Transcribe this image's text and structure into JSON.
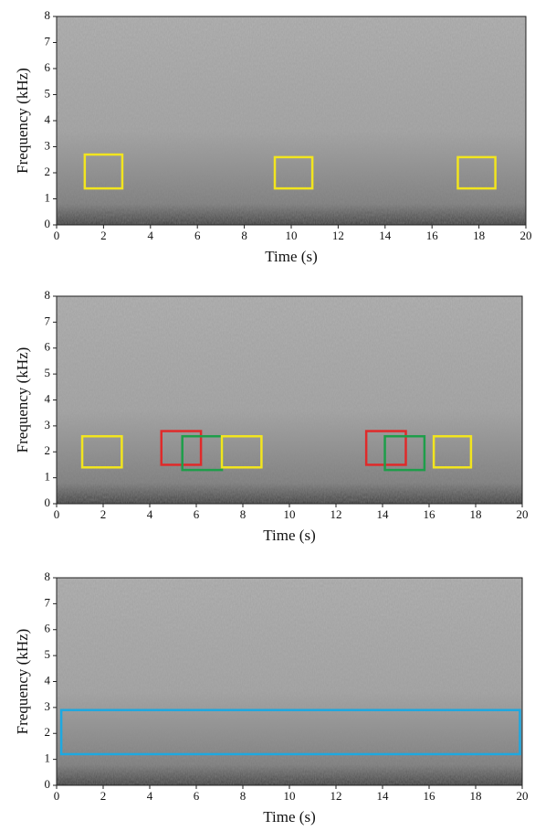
{
  "chart_data": [
    {
      "type": "spectrogram",
      "xlabel": "Time (s)",
      "ylabel": "Frequency (kHz)",
      "xlim": [
        0,
        20
      ],
      "ylim": [
        0,
        8
      ],
      "xticks": [
        0,
        2,
        4,
        6,
        8,
        10,
        12,
        14,
        16,
        18,
        20
      ],
      "yticks": [
        0,
        1,
        2,
        3,
        4,
        5,
        6,
        7,
        8
      ],
      "boxes": [
        {
          "color": "#f2e51e",
          "x": [
            1.2,
            2.8
          ],
          "y": [
            1.4,
            2.7
          ]
        },
        {
          "color": "#f2e51e",
          "x": [
            9.3,
            10.9
          ],
          "y": [
            1.4,
            2.6
          ]
        },
        {
          "color": "#f2e51e",
          "x": [
            17.1,
            18.7
          ],
          "y": [
            1.4,
            2.6
          ]
        }
      ]
    },
    {
      "type": "spectrogram",
      "xlabel": "Time (s)",
      "ylabel": "Frequency (kHz)",
      "xlim": [
        0,
        20
      ],
      "ylim": [
        0,
        8
      ],
      "xticks": [
        0,
        2,
        4,
        6,
        8,
        10,
        12,
        14,
        16,
        18,
        20
      ],
      "yticks": [
        0,
        1,
        2,
        3,
        4,
        5,
        6,
        7,
        8
      ],
      "boxes": [
        {
          "color": "#f2e51e",
          "x": [
            1.1,
            2.8
          ],
          "y": [
            1.4,
            2.6
          ]
        },
        {
          "color": "#e02a2a",
          "x": [
            4.5,
            6.2
          ],
          "y": [
            1.5,
            2.8
          ]
        },
        {
          "color": "#1e9e4a",
          "x": [
            5.4,
            7.1
          ],
          "y": [
            1.3,
            2.6
          ]
        },
        {
          "color": "#f2e51e",
          "x": [
            7.1,
            8.8
          ],
          "y": [
            1.4,
            2.6
          ]
        },
        {
          "color": "#e02a2a",
          "x": [
            13.3,
            15.0
          ],
          "y": [
            1.5,
            2.8
          ]
        },
        {
          "color": "#1e9e4a",
          "x": [
            14.1,
            15.8
          ],
          "y": [
            1.3,
            2.6
          ]
        },
        {
          "color": "#f2e51e",
          "x": [
            16.2,
            17.8
          ],
          "y": [
            1.4,
            2.6
          ]
        }
      ]
    },
    {
      "type": "spectrogram",
      "xlabel": "Time (s)",
      "ylabel": "Frequency (kHz)",
      "xlim": [
        0,
        20
      ],
      "ylim": [
        0,
        8
      ],
      "xticks": [
        0,
        2,
        4,
        6,
        8,
        10,
        12,
        14,
        16,
        18,
        20
      ],
      "yticks": [
        0,
        1,
        2,
        3,
        4,
        5,
        6,
        7,
        8
      ],
      "boxes": [
        {
          "color": "#1ea8e0",
          "x": [
            0.2,
            19.9
          ],
          "y": [
            1.2,
            2.9
          ]
        }
      ]
    }
  ]
}
